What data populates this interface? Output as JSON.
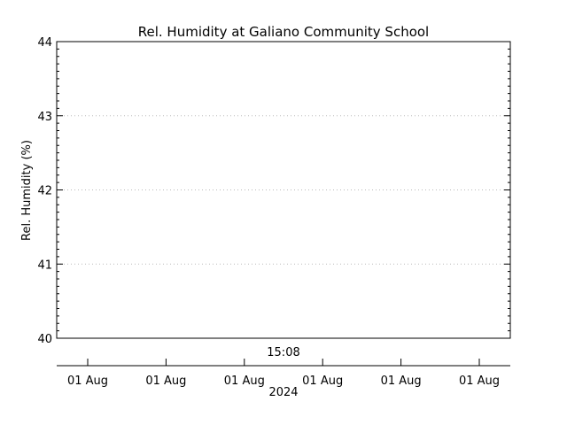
{
  "chart_data": {
    "type": "line",
    "title": "Rel. Humidity at Galiano Community School",
    "ylabel": "Rel. Humidity (%)",
    "xlabel": "",
    "ylim": [
      40,
      44
    ],
    "y_ticks": [
      "40",
      "41",
      "42",
      "43",
      "44"
    ],
    "grid": true,
    "series": [],
    "x_time_label": "15:08",
    "x_tick_labels": [
      "01 Aug",
      "01 Aug",
      "01 Aug",
      "01 Aug",
      "01 Aug",
      "01 Aug"
    ],
    "x_year_label": "2024"
  }
}
